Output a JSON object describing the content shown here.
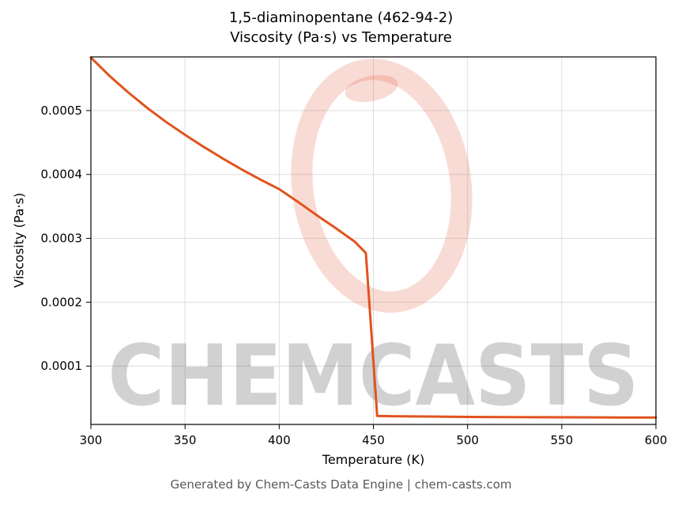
{
  "header": {
    "title": "1,5-diaminopentane (462-94-2)",
    "subtitle": "Viscosity (Pa·s) vs Temperature"
  },
  "footer": {
    "text": "Generated by Chem-Casts Data Engine | chem-casts.com"
  },
  "watermark": {
    "text": "CHEMCASTS",
    "color": "#e0492c",
    "text_opacity": 0.18,
    "ring_opacity": 0.2
  },
  "chart_data": {
    "type": "line",
    "title": "1,5-diaminopentane (462-94-2)",
    "subtitle": "Viscosity (Pa·s) vs Temperature",
    "xlabel": "Temperature (K)",
    "ylabel": "Viscosity (Pa·s)",
    "xlim": [
      300,
      600
    ],
    "ylim": [
      8.7e-06,
      0.000584
    ],
    "xticks": [
      300,
      350,
      400,
      450,
      500,
      550,
      600
    ],
    "xtick_labels": [
      "300",
      "350",
      "400",
      "450",
      "500",
      "550",
      "600"
    ],
    "yticks": [
      0.0001,
      0.0002,
      0.0003,
      0.0004,
      0.0005
    ],
    "ytick_labels": [
      "0.0001",
      "0.0002",
      "0.0003",
      "0.0004",
      "0.0005"
    ],
    "grid": true,
    "legend": "none",
    "line_color": "#e1531d",
    "line_width": 3,
    "series": [
      {
        "name": "viscosity_Pa_s",
        "points": [
          [
            300,
            0.000583
          ],
          [
            310,
            0.000554
          ],
          [
            320,
            0.000528
          ],
          [
            330,
            0.000504
          ],
          [
            340,
            0.000482
          ],
          [
            350,
            0.000462
          ],
          [
            360,
            0.000443
          ],
          [
            370,
            0.000425
          ],
          [
            380,
            0.000408
          ],
          [
            390,
            0.000392
          ],
          [
            400,
            0.000377
          ],
          [
            410,
            0.000357
          ],
          [
            420,
            0.000336
          ],
          [
            430,
            0.000316
          ],
          [
            440,
            0.000295
          ],
          [
            445,
            0.00028
          ],
          [
            446,
            0.000277
          ],
          [
            452,
            2.2e-05
          ],
          [
            460,
            2.15e-05
          ],
          [
            480,
            2.1e-05
          ],
          [
            500,
            2.05e-05
          ],
          [
            520,
            2.02e-05
          ],
          [
            540,
            2e-05
          ],
          [
            560,
            1.98e-05
          ],
          [
            580,
            1.96e-05
          ],
          [
            600,
            1.95e-05
          ]
        ]
      }
    ]
  }
}
